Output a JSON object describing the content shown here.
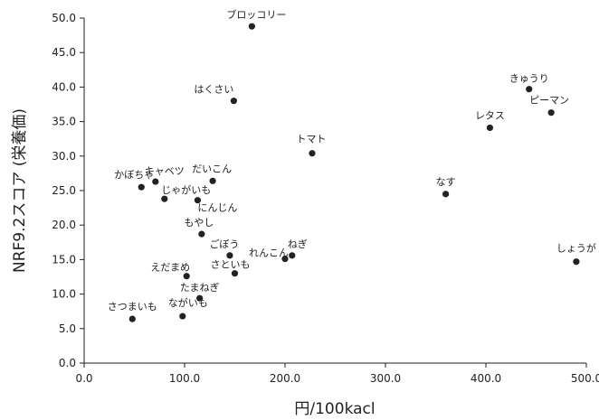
{
  "chart_data": {
    "type": "scatter",
    "title": "",
    "xlabel": "円/100kacl",
    "ylabel": "NRF9.2スコア (栄養価)",
    "xlim": [
      0,
      500
    ],
    "ylim": [
      0,
      50
    ],
    "xticks": [
      0,
      100,
      200,
      300,
      400,
      500
    ],
    "yticks": [
      0,
      5,
      10,
      15,
      20,
      25,
      30,
      35,
      40,
      45,
      50
    ],
    "xtick_labels": [
      "0.0",
      "100.0",
      "200.0",
      "300.0",
      "400.0",
      "500.0"
    ],
    "ytick_labels": [
      "0.0",
      "5.0",
      "10.0",
      "15.0",
      "20.0",
      "25.0",
      "30.0",
      "35.0",
      "40.0",
      "45.0",
      "50.0"
    ],
    "grid": false,
    "legend": "none",
    "marker_color": "#222222",
    "points": [
      {
        "label": "ブロッコリー",
        "x": 167,
        "y": 48.8
      },
      {
        "label": "はくさい",
        "x": 149,
        "y": 38.0
      },
      {
        "label": "きゅうり",
        "x": 443,
        "y": 39.7
      },
      {
        "label": "ピーマン",
        "x": 465,
        "y": 36.3
      },
      {
        "label": "レタス",
        "x": 404,
        "y": 34.1
      },
      {
        "label": "トマト",
        "x": 227,
        "y": 30.4
      },
      {
        "label": "キャベツ",
        "x": 71,
        "y": 26.3
      },
      {
        "label": "だいこん",
        "x": 128,
        "y": 26.4
      },
      {
        "label": "かぼちゃ",
        "x": 57,
        "y": 25.5
      },
      {
        "label": "じゃがいも",
        "x": 80,
        "y": 23.8
      },
      {
        "label": "にんじん",
        "x": 113,
        "y": 23.6
      },
      {
        "label": "なす",
        "x": 360,
        "y": 24.5
      },
      {
        "label": "もやし",
        "x": 117,
        "y": 18.7
      },
      {
        "label": "ごぼう",
        "x": 145,
        "y": 15.6
      },
      {
        "label": "れんこん",
        "x": 200,
        "y": 15.1
      },
      {
        "label": "ねぎ",
        "x": 207,
        "y": 15.6
      },
      {
        "label": "しょうが",
        "x": 490,
        "y": 14.7
      },
      {
        "label": "さといも",
        "x": 150,
        "y": 13.0
      },
      {
        "label": "えだまめ",
        "x": 102,
        "y": 12.6
      },
      {
        "label": "たまねぎ",
        "x": 115,
        "y": 9.4
      },
      {
        "label": "ながいも",
        "x": 98,
        "y": 6.8
      },
      {
        "label": "さつまいも",
        "x": 48,
        "y": 6.4
      }
    ]
  }
}
